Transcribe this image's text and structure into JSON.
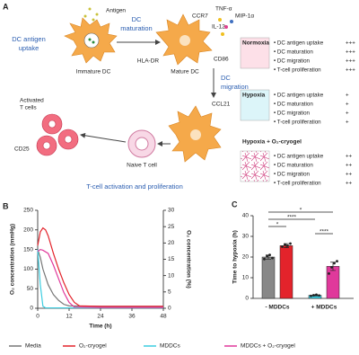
{
  "panel_a": {
    "label": "A",
    "antigen": "Antigen",
    "uptake": [
      "DC antigen",
      "uptake"
    ],
    "maturation": [
      "DC",
      "maturation"
    ],
    "immature_dc": "Immature DC",
    "ccr7": "CCR7",
    "tnf": "TNF-α",
    "il12": "IL-12",
    "mip": "MIP-1α",
    "hladr": "HLA-DR",
    "cd86": "CD86",
    "mature_dc": "Mature DC",
    "migration": [
      "DC",
      "migration"
    ],
    "ccl21": "CCL21",
    "activated": [
      "Activated",
      "T cells"
    ],
    "cd25": "CD25",
    "naive": "Naive T cell",
    "activation": "T-cell activation and proliferation",
    "conditions": [
      {
        "name": "Normoxia",
        "items": [
          {
            "label": "• DC antigen uptake",
            "score": "+++"
          },
          {
            "label": "• DC maturation",
            "score": "+++"
          },
          {
            "label": "• DC migration",
            "score": "+++"
          },
          {
            "label": "• T-cell proliferation",
            "score": "+++"
          }
        ]
      },
      {
        "name": "Hypoxia",
        "items": [
          {
            "label": "• DC antigen uptake",
            "score": "+"
          },
          {
            "label": "• DC maturation",
            "score": "+"
          },
          {
            "label": "• DC migration",
            "score": "+"
          },
          {
            "label": "• T-cell proliferation",
            "score": "+"
          }
        ]
      },
      {
        "name": "Hypoxia + O₂-cryogel",
        "items": [
          {
            "label": "• DC antigen uptake",
            "score": "++"
          },
          {
            "label": "• DC maturation",
            "score": "++"
          },
          {
            "label": "• DC migration",
            "score": "++"
          },
          {
            "label": "• T-cell proliferation",
            "score": "++"
          }
        ]
      }
    ]
  },
  "chart_data": [
    {
      "type": "line",
      "label": "B",
      "x_label": "Time (h)",
      "y_label": "O₂ concentration (mmHg)",
      "y2_label": "O₂ concentration (%)",
      "xlim": [
        0,
        48
      ],
      "xticks": [
        0,
        12,
        24,
        36,
        48
      ],
      "ylim": [
        0,
        250
      ],
      "yticks": [
        0,
        50,
        100,
        150,
        200,
        250
      ],
      "y2lim": [
        0,
        30
      ],
      "y2ticks": [
        0,
        5,
        10,
        15,
        20,
        25,
        30
      ],
      "series": [
        {
          "name": "Media",
          "color": "#777777",
          "x": [
            0,
            1,
            2,
            4,
            6,
            8,
            10,
            12,
            24,
            36,
            48
          ],
          "values": [
            150,
            130,
            100,
            60,
            35,
            20,
            10,
            6,
            5,
            5,
            5
          ]
        },
        {
          "name": "O₂-cryogel",
          "color": "#e3232b",
          "x": [
            0,
            1,
            2,
            3,
            4,
            6,
            8,
            10,
            12,
            14,
            16,
            24,
            36,
            48
          ],
          "values": [
            160,
            195,
            205,
            200,
            185,
            140,
            100,
            65,
            35,
            15,
            6,
            5,
            5,
            5
          ]
        },
        {
          "name": "MDDCs",
          "color": "#3ccde0",
          "x": [
            0,
            1,
            2,
            3,
            12,
            24,
            36,
            48
          ],
          "values": [
            150,
            60,
            5,
            1,
            1,
            1,
            1,
            1
          ]
        },
        {
          "name": "MDDCs + O₂-cryogel",
          "color": "#e0399b",
          "x": [
            0,
            1,
            2,
            4,
            6,
            8,
            10,
            12,
            14,
            24,
            36,
            48
          ],
          "values": [
            145,
            150,
            148,
            140,
            110,
            75,
            40,
            15,
            3,
            2,
            2,
            2
          ]
        }
      ]
    },
    {
      "type": "bar",
      "label": "C",
      "y_label": "Time to hypoxia (h)",
      "ylim": [
        0,
        40
      ],
      "yticks": [
        0,
        10,
        20,
        30,
        40
      ],
      "groups": [
        {
          "label": "- MDDCs",
          "colors": [
            "#888888",
            "#e3232b"
          ],
          "values": [
            20,
            25.5
          ],
          "errors": [
            1,
            1
          ],
          "points": [
            [
              19,
              20.5,
              21,
              19.5
            ],
            [
              25,
              26,
              25.5,
              26.5
            ]
          ]
        },
        {
          "label": "+ MDDCs",
          "colors": [
            "#3ccde0",
            "#e0399b"
          ],
          "values": [
            1.5,
            15.5
          ],
          "errors": [
            0.3,
            2
          ],
          "points": [
            [
              1.2,
              1.5,
              1.8,
              1.4
            ],
            [
              12,
              15,
              17,
              18
            ]
          ]
        }
      ],
      "brackets": [
        {
          "from": 0,
          "to": 3,
          "label": "*"
        },
        {
          "from": 0,
          "to": 2,
          "label": "****"
        },
        {
          "from": 0,
          "to": 1,
          "label": "*"
        },
        {
          "from": 2,
          "to": 3,
          "label": "****"
        }
      ]
    }
  ]
}
